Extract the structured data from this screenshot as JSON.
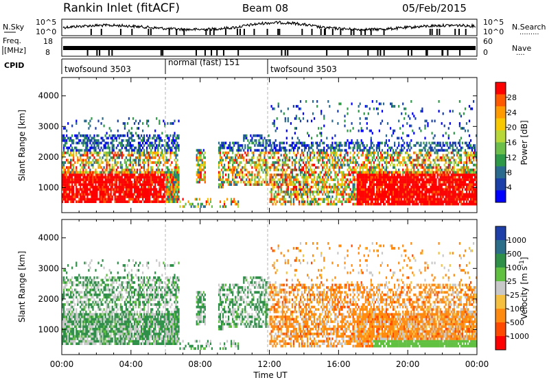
{
  "header": {
    "station": "Rankin Inlet (fitACF)",
    "beam": "Beam 08",
    "date": "05/Feb/2015"
  },
  "noise_panel": {
    "left_label": "N.Sky",
    "right_label": "N.Search",
    "right_style": ".........",
    "ticks_left": [
      "10^5",
      "10^0"
    ],
    "ticks_right": [
      "10^5",
      "10^0"
    ]
  },
  "freq_panel": {
    "left_label_1": "Freq.",
    "left_label_2": "[MHz]",
    "right_label": "Nave",
    "right_style": "....",
    "ticks_left": [
      "18",
      "8"
    ],
    "ticks_right": [
      "60",
      "0"
    ]
  },
  "cpid": {
    "label": "CPID",
    "segments": [
      {
        "name": "twofsound 3503",
        "start_hour": 0
      },
      {
        "name": "normal (fast) 151",
        "start_hour": 6
      },
      {
        "name": "twofsound 3503",
        "start_hour": 12
      }
    ]
  },
  "chart_data": [
    {
      "type": "heatmap",
      "name": "Power",
      "ylabel": "Slant Range [km]",
      "xlabel": "Time UT",
      "xlim_hours": [
        0,
        24
      ],
      "ylim_km": [
        180,
        4600
      ],
      "yticks": [
        1000,
        2000,
        3000,
        4000
      ],
      "colorbar": {
        "label": "Power [dB]",
        "ticks": [
          "28",
          "24",
          "20",
          "16",
          "12",
          "8",
          "4"
        ],
        "colors": [
          "#ff0000",
          "#ff5a00",
          "#ff9a00",
          "#f8c800",
          "#b8d83a",
          "#6cc04a",
          "#2e9a48",
          "#2a6a8e",
          "#1a3fa8",
          "#0000ff"
        ]
      },
      "vertical_markers_hours": [
        6,
        12
      ]
    },
    {
      "type": "heatmap",
      "name": "Velocity",
      "ylabel": "Slant Range [km]",
      "xlabel": "Time UT",
      "xlim_hours": [
        0,
        24
      ],
      "ylim_km": [
        180,
        4600
      ],
      "yticks": [
        1000,
        2000,
        3000,
        4000
      ],
      "colorbar": {
        "label": "Velocity [m s^-1]",
        "ticks": [
          "1000",
          "500",
          "100",
          "25",
          "-25",
          "-100",
          "-500",
          "-1000"
        ],
        "colors": [
          "#1e3fa8",
          "#2a6e8a",
          "#2e9048",
          "#60c040",
          "#c8c8c8",
          "#f5c040",
          "#ff8a10",
          "#ff4800",
          "#ff0000"
        ]
      },
      "vertical_markers_hours": [
        6,
        12
      ]
    }
  ],
  "time_axis": {
    "ticks": [
      "00:00",
      "04:00",
      "08:00",
      "12:00",
      "16:00",
      "20:00",
      "00:00"
    ],
    "label": "Time UT"
  }
}
